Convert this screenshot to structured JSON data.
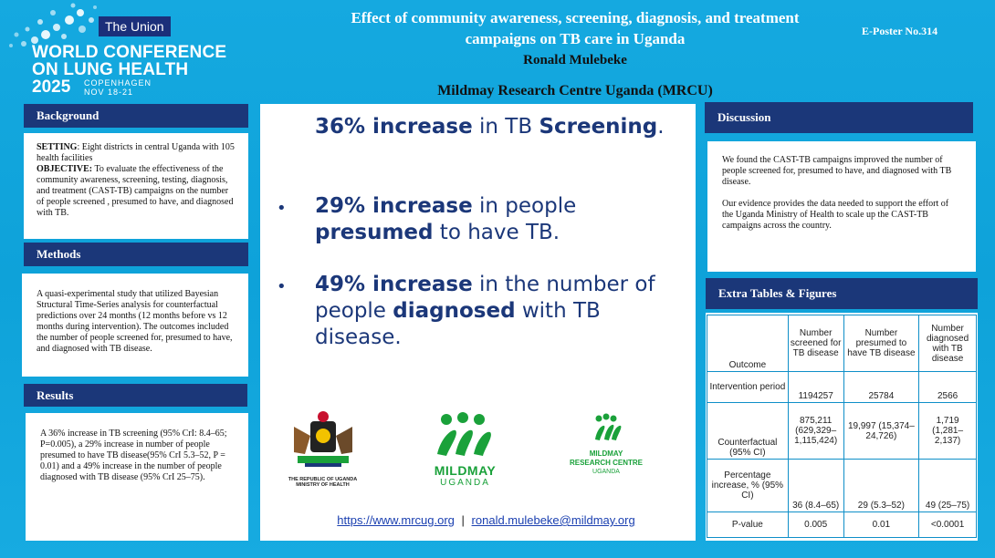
{
  "conference": {
    "org": "The Union",
    "name_line1": "WORLD CONFERENCE",
    "name_line2": "ON LUNG HEALTH",
    "year": "2025",
    "city": "COPENHAGEN",
    "dates": "NOV 18-21"
  },
  "header": {
    "title_line1": "Effect of community awareness, screening, diagnosis,  and treatment",
    "title_line2": "campaigns on TB care in Uganda",
    "author": "Ronald Mulebeke",
    "institution": "Mildmay Research Centre Uganda (MRCU)",
    "eposter": "E-Poster No.314"
  },
  "background": {
    "heading": "Background",
    "setting_label": "SETTING",
    "setting_text": ": Eight districts in central Uganda with 105 health facilities",
    "objective_label": "OBJECTIVE:",
    "objective_text": " To evaluate the effectiveness of the community awareness, screening, testing, diagnosis, and treatment (CAST-TB) campaigns on the number of people screened , presumed to have, and diagnosed with TB."
  },
  "methods": {
    "heading": "Methods",
    "text": "A quasi-experimental study that utilized Bayesian Structural Time-Series analysis for counterfactual predictions over 24 months (12 months before vs 12 months during intervention). The outcomes included the number of people screened for, presumed to have, and diagnosed with TB disease."
  },
  "results": {
    "heading": "Results",
    "text": "A 36% increase in TB screening (95% CrI: 8.4–65; P=0.005), a 29% increase in number of people presumed to have TB disease(95% CrI 5.3–52, P = 0.01) and  a 49% increase in the number of people diagnosed with TB disease (95% CrI 25–75)."
  },
  "highlights": [
    {
      "b1": "36% increase",
      "t1": " in TB ",
      "b2": "Screening",
      "t2": "."
    },
    {
      "b1": "29% increase",
      "t1": " in people ",
      "b2": "presumed",
      "t2": " to have TB."
    },
    {
      "b1": "49% increase",
      "t1": " in the number of people ",
      "b2": "diagnosed",
      "t2": " with TB disease."
    }
  ],
  "logos": {
    "uganda_line1": "THE REPUBLIC OF UGANDA",
    "uganda_line2": "MINISTRY OF HEALTH",
    "mildmay_name": "MILDMAY",
    "mildmay_country": "UGANDA",
    "mrcu_line1": "MILDMAY",
    "mrcu_line2": "RESEARCH CENTRE",
    "mrcu_line3": "UGANDA"
  },
  "contact": {
    "website": "https://www.mrcug.org",
    "separator": "|",
    "email": "ronald.mulebeke@mildmay.org"
  },
  "discussion": {
    "heading": "Discussion",
    "para1": "We found the CAST-TB campaigns improved the number of people screened for, presumed to have, and diagnosed with TB disease.",
    "para2": "Our evidence provides the data needed to support the effort of the Uganda Ministry of Health to scale up the CAST-TB campaigns across the country."
  },
  "extra": {
    "heading": "Extra Tables & Figures",
    "columns": [
      "Outcome",
      "Number screened for TB disease",
      "Number presumed to have TB disease",
      "Number diagnosed with TB disease"
    ],
    "rows": [
      [
        "Intervention period",
        "1194257",
        "25784",
        "2566"
      ],
      [
        "Counterfactual (95% CI)",
        "875,211 (629,329–1,115,424)",
        "19,997 (15,374–24,726)",
        "1,719 (1,281–2,137)"
      ],
      [
        "Percentage increase, % (95% CI)",
        "36 (8.4–65)",
        "29 (5.3–52)",
        "49 (25–75)"
      ],
      [
        "P-value",
        "0.005",
        "0.01",
        "<0.0001"
      ]
    ]
  },
  "colors": {
    "background": "#14a7df",
    "header_navy": "#1b3779",
    "accent_green": "#1aa13a"
  }
}
